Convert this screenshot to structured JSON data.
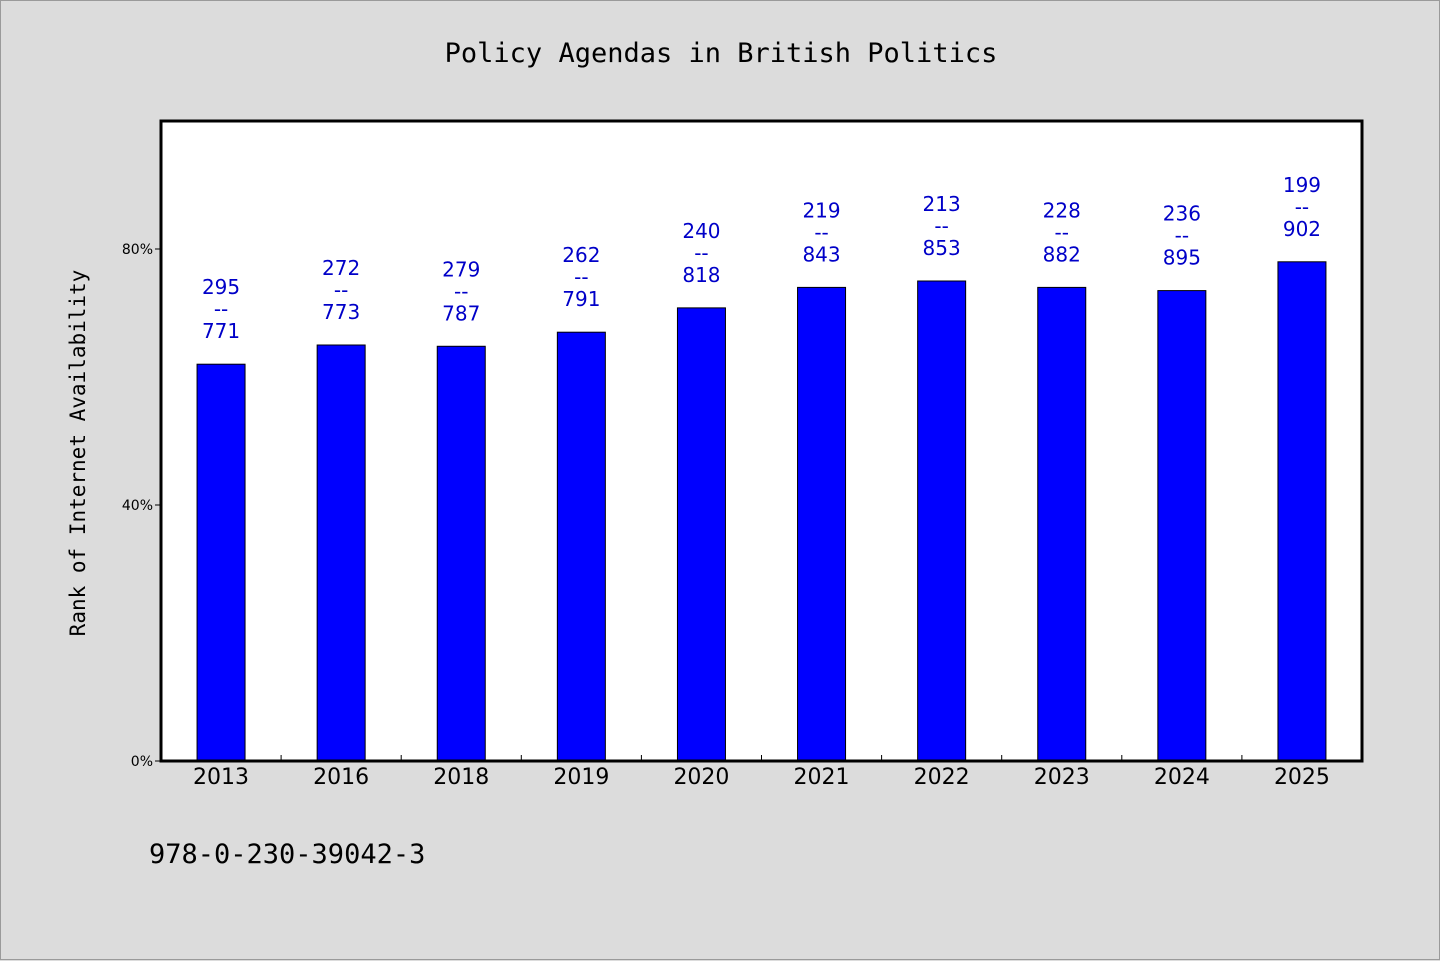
{
  "chart_data": {
    "type": "bar",
    "title": "Policy Agendas in British Politics",
    "xlabel": "",
    "ylabel": "Rank of Internet Availability",
    "categories": [
      "2013",
      "2016",
      "2018",
      "2019",
      "2020",
      "2021",
      "2022",
      "2023",
      "2024",
      "2025"
    ],
    "values": [
      62,
      65,
      64.8,
      67,
      70.8,
      74,
      75,
      74,
      73.5,
      78
    ],
    "labels": [
      [
        "295",
        "--",
        "771"
      ],
      [
        "272",
        "--",
        "773"
      ],
      [
        "279",
        "--",
        "787"
      ],
      [
        "262",
        "--",
        "791"
      ],
      [
        "240",
        "--",
        "818"
      ],
      [
        "219",
        "--",
        "843"
      ],
      [
        "213",
        "--",
        "853"
      ],
      [
        "228",
        "--",
        "882"
      ],
      [
        "236",
        "--",
        "895"
      ],
      [
        "199",
        "--",
        "902"
      ]
    ],
    "ylim": [
      0,
      100
    ],
    "yticks": [
      0,
      40,
      80
    ],
    "ytick_labels": [
      "0%",
      "40%",
      "80%"
    ],
    "grid": false,
    "legend": "none",
    "colors": {
      "bar": "#0000ff",
      "bar_edge": "#000000",
      "label": "#0000c8",
      "background": "#dcdcdc",
      "plot_background": "#ffffff"
    }
  },
  "footer_text": "978-0-230-39042-3"
}
